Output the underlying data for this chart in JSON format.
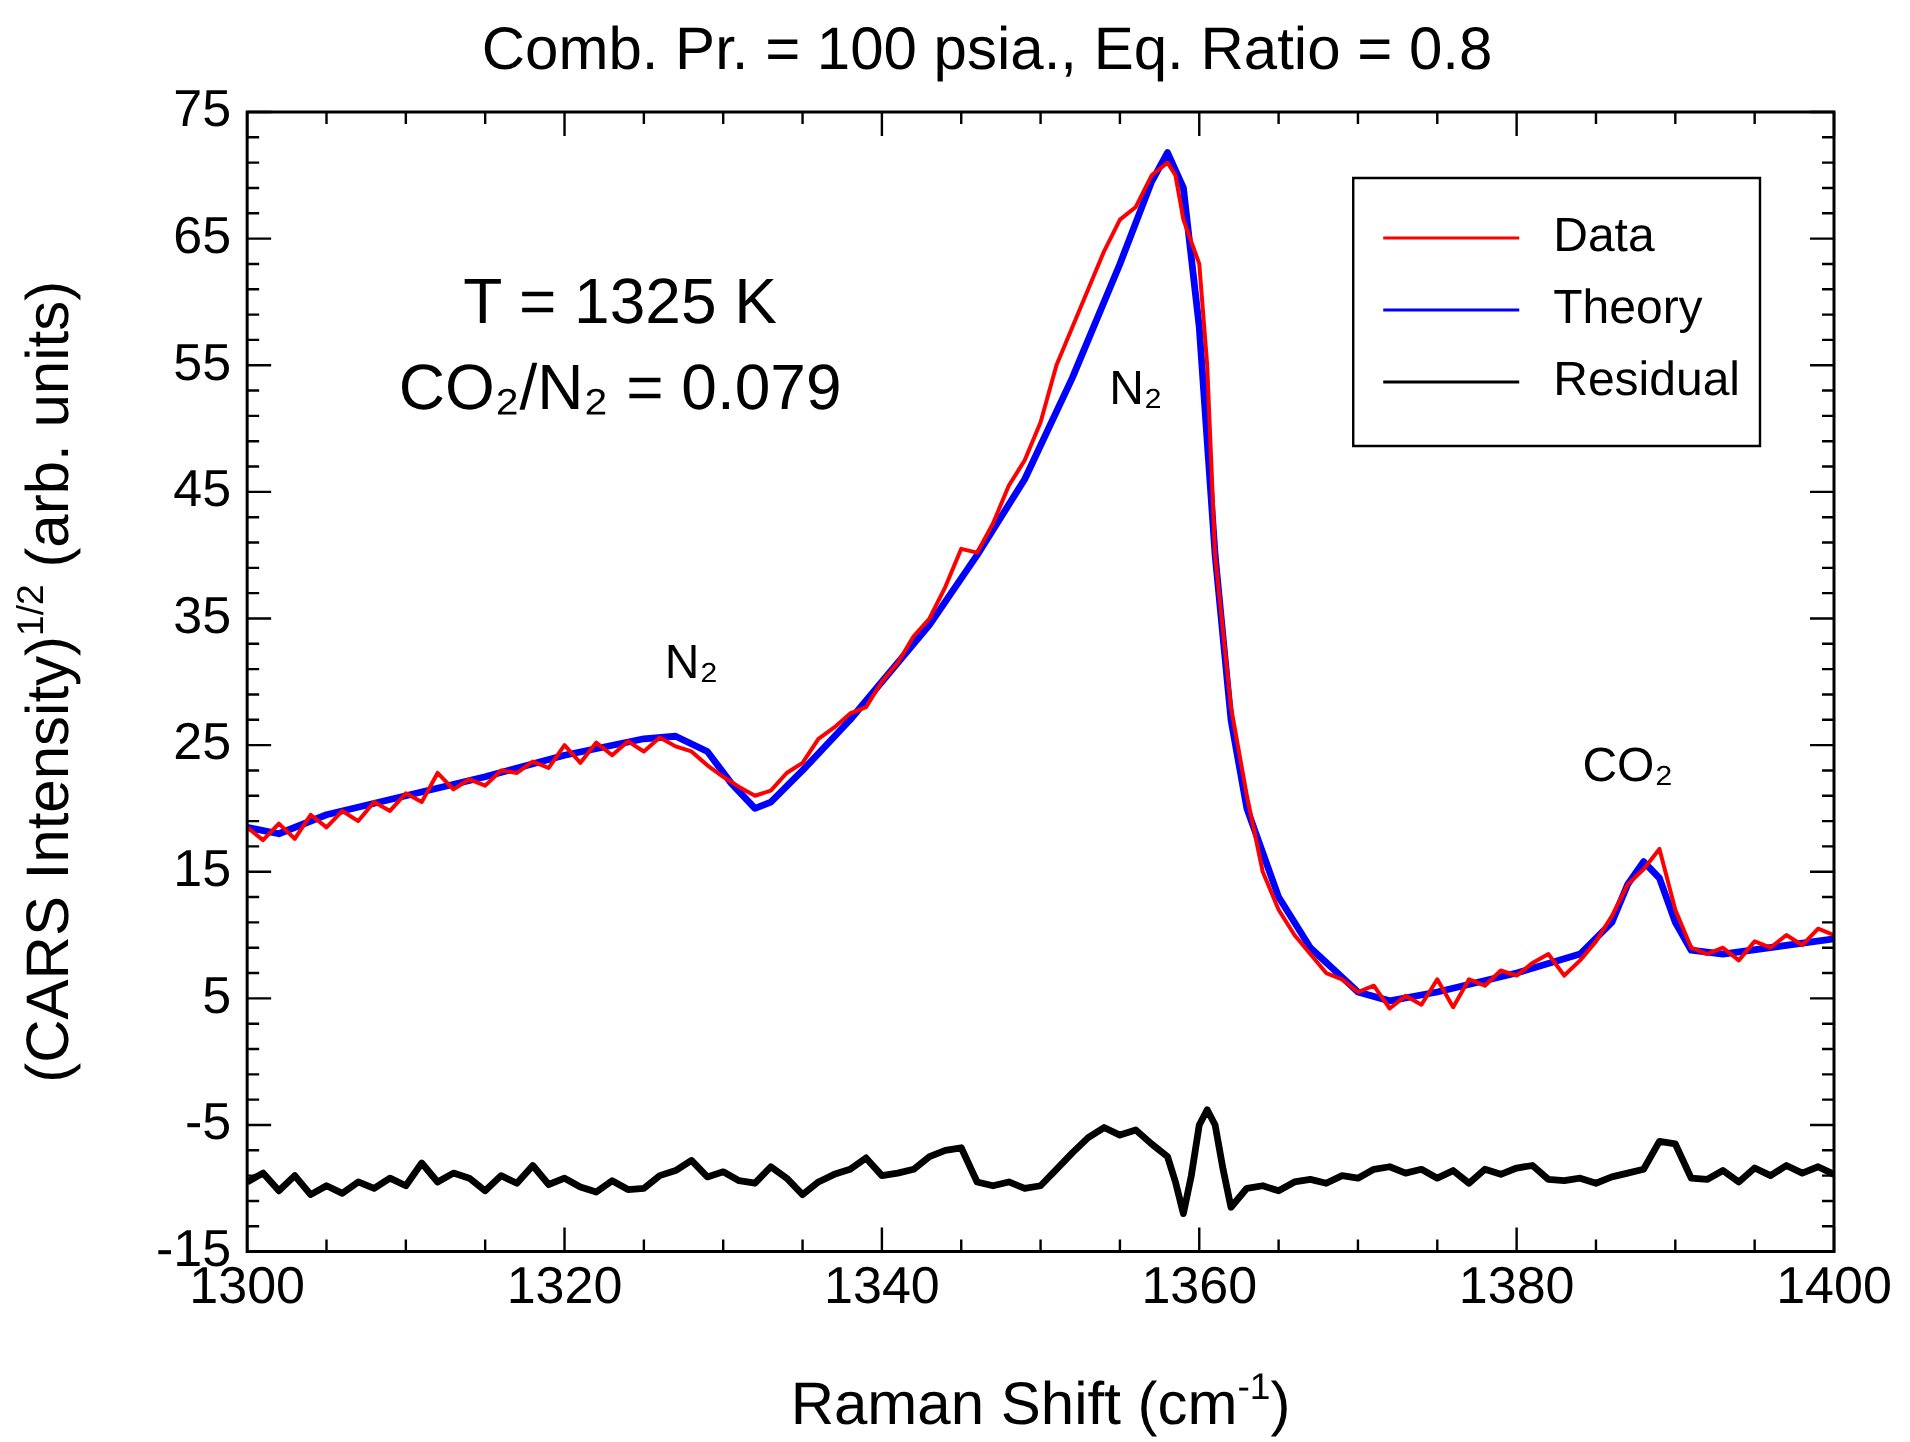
{
  "chart_data": {
    "type": "line",
    "title": "Comb. Pr. = 100 psia., Eq. Ratio = 0.8",
    "xlabel": "Raman Shift (cm$^{-1}$)",
    "ylabel": "(CARS Intensity)$^{1/2}$ (arb. units)",
    "xlim": [
      1300,
      1400
    ],
    "xticks": [
      1300,
      1320,
      1340,
      1360,
      1380,
      1400
    ],
    "ylim": [
      -15,
      75
    ],
    "yticks": [
      -15,
      -5,
      5,
      15,
      25,
      35,
      45,
      55,
      65,
      75
    ],
    "grid": false,
    "legend": "top right",
    "marker": "none",
    "line_style": "solid",
    "annotations": [
      "T = 1325 K",
      "CO₂/N₂ = 0.079",
      "N₂",
      "N₂",
      "CO₂"
    ],
    "series": [
      {
        "name": "Data",
        "color": "#ff0000",
        "x": [
          1300,
          1301,
          1302,
          1303,
          1304,
          1305,
          1306,
          1307,
          1308,
          1309,
          1310,
          1311,
          1312,
          1313,
          1314,
          1315,
          1316,
          1317,
          1318,
          1319,
          1320,
          1321,
          1322,
          1323,
          1324,
          1325,
          1326,
          1327,
          1328,
          1329,
          1330,
          1331,
          1332,
          1333,
          1334,
          1335,
          1336,
          1337,
          1338,
          1339,
          1340,
          1341,
          1342,
          1343,
          1344,
          1345,
          1346,
          1347,
          1348,
          1349,
          1350,
          1351,
          1352,
          1353,
          1354,
          1355,
          1356,
          1357,
          1358,
          1358.5,
          1359,
          1360,
          1360.5,
          1361,
          1362,
          1363,
          1364,
          1365,
          1366,
          1367,
          1368,
          1369,
          1370,
          1371,
          1372,
          1373,
          1374,
          1375,
          1376,
          1377,
          1378,
          1379,
          1380,
          1381,
          1382,
          1383,
          1384,
          1385,
          1386,
          1387,
          1388,
          1389,
          1390,
          1391,
          1392,
          1393,
          1394,
          1395,
          1396,
          1397,
          1398,
          1399,
          1400
        ],
        "values": [
          18.5,
          17.5,
          18.8,
          17.6,
          19.5,
          18.5,
          19.8,
          19,
          20.5,
          19.8,
          21.2,
          20.5,
          22.8,
          21.5,
          22.3,
          21.8,
          23,
          22.8,
          23.7,
          23.2,
          25,
          23.6,
          25.2,
          24.2,
          25.3,
          24.5,
          25.6,
          24.9,
          24.5,
          23.4,
          22.5,
          21.7,
          21,
          21.4,
          22.8,
          23.6,
          25.5,
          26.4,
          27.5,
          28,
          30,
          31.5,
          33.6,
          35,
          37.5,
          40.5,
          40.2,
          42.5,
          45.5,
          47.5,
          50.5,
          55,
          58,
          61,
          64,
          66.5,
          67.5,
          70,
          71,
          70,
          66.5,
          63,
          55,
          40,
          28,
          21,
          15,
          12,
          10,
          8.5,
          7,
          6.5,
          5.5,
          6,
          4.2,
          5.2,
          4.5,
          6.5,
          4.3,
          6.5,
          6,
          7.2,
          6.8,
          7.8,
          8.5,
          6.8,
          8,
          9.5,
          11.5,
          14,
          15.2,
          16.8,
          12,
          9,
          8.5,
          9,
          8,
          9.5,
          9,
          10,
          9.2,
          10.5,
          10
        ]
      },
      {
        "name": "Theory",
        "color": "#0000ff",
        "x": [
          1300,
          1302,
          1305,
          1310,
          1315,
          1320,
          1325,
          1327,
          1329,
          1330.5,
          1332,
          1333,
          1335,
          1338,
          1340,
          1343,
          1346,
          1349,
          1352,
          1355,
          1357,
          1358,
          1359,
          1360,
          1361,
          1362,
          1363,
          1365,
          1367,
          1370,
          1372,
          1375,
          1380,
          1384,
          1386,
          1387,
          1388,
          1389,
          1390,
          1391,
          1393,
          1400
        ],
        "values": [
          18.5,
          18,
          19.5,
          21,
          22.5,
          24.2,
          25.5,
          25.7,
          24.5,
          22,
          20,
          20.5,
          23,
          27,
          30,
          34.5,
          40,
          46,
          54,
          63,
          69.5,
          71.8,
          69,
          58,
          40,
          27,
          20,
          13,
          9,
          5.5,
          4.8,
          5.5,
          7,
          8.5,
          11,
          14,
          15.8,
          14.5,
          11,
          8.8,
          8.5,
          9.7
        ]
      },
      {
        "name": "Residual",
        "color": "#000000",
        "x": [
          1300,
          1301,
          1302,
          1303,
          1304,
          1305,
          1306,
          1307,
          1308,
          1309,
          1310,
          1311,
          1312,
          1313,
          1314,
          1315,
          1316,
          1317,
          1318,
          1319,
          1320,
          1321,
          1322,
          1323,
          1324,
          1325,
          1326,
          1327,
          1328,
          1329,
          1330,
          1331,
          1332,
          1333,
          1334,
          1335,
          1336,
          1337,
          1338,
          1339,
          1340,
          1341,
          1342,
          1343,
          1344,
          1345,
          1346,
          1347,
          1348,
          1349,
          1350,
          1351,
          1352,
          1353,
          1354,
          1355,
          1356,
          1357,
          1358,
          1358.5,
          1359,
          1359.5,
          1360,
          1360.5,
          1361,
          1361.5,
          1362,
          1363,
          1364,
          1365,
          1366,
          1367,
          1368,
          1369,
          1370,
          1371,
          1372,
          1373,
          1374,
          1375,
          1376,
          1377,
          1378,
          1379,
          1380,
          1381,
          1382,
          1383,
          1384,
          1385,
          1386,
          1387,
          1388,
          1389,
          1390,
          1391,
          1392,
          1393,
          1394,
          1395,
          1396,
          1397,
          1398,
          1399,
          1400
        ],
        "values": [
          -9.5,
          -8.8,
          -10.2,
          -9,
          -10.5,
          -9.8,
          -10.4,
          -9.5,
          -10,
          -9.2,
          -9.8,
          -8,
          -9.5,
          -8.8,
          -9.2,
          -10.2,
          -9,
          -9.6,
          -8.2,
          -9.7,
          -9.2,
          -9.9,
          -10.3,
          -9.4,
          -10.1,
          -10,
          -9,
          -8.6,
          -7.8,
          -9.1,
          -8.7,
          -9.4,
          -9.6,
          -8.3,
          -9.2,
          -10.5,
          -9.5,
          -8.9,
          -8.5,
          -7.6,
          -9,
          -8.8,
          -8.5,
          -7.5,
          -7,
          -6.8,
          -9.5,
          -9.8,
          -9.5,
          -10,
          -9.8,
          -8.5,
          -7.2,
          -6,
          -5.2,
          -5.8,
          -5.4,
          -6.5,
          -7.5,
          -9.5,
          -12,
          -9,
          -5,
          -3.8,
          -5,
          -8.5,
          -11.5,
          -10,
          -9.8,
          -10.2,
          -9.5,
          -9.3,
          -9.6,
          -9,
          -9.2,
          -8.5,
          -8.3,
          -8.8,
          -8.5,
          -9.2,
          -8.6,
          -9.6,
          -8.5,
          -8.9,
          -8.4,
          -8.2,
          -9.3,
          -9.4,
          -9.2,
          -9.6,
          -9.1,
          -8.8,
          -8.5,
          -6.3,
          -6.5,
          -9.2,
          -9.3,
          -8.6,
          -9.5,
          -8.4,
          -9,
          -8.2,
          -8.8,
          -8.3,
          -8.9
        ]
      }
    ]
  }
}
